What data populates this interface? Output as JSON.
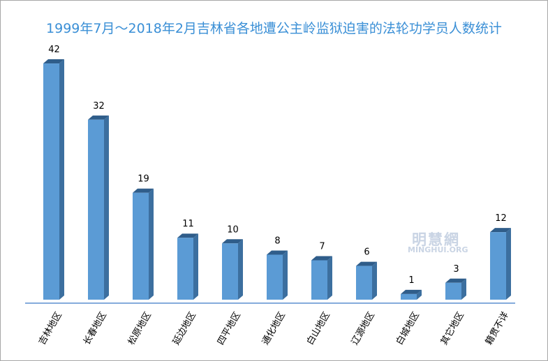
{
  "chart_data": {
    "type": "bar",
    "title": "1999年7月～2018年2月吉林省各地遭公主岭监狱迫害的法轮功学员人数统计",
    "categories": [
      "吉林地区",
      "长春地区",
      "松原地区",
      "延边地区",
      "四平地区",
      "通化地区",
      "白山地区",
      "辽源地区",
      "白城地区",
      "其它地区",
      "籍贯不详"
    ],
    "values": [
      42,
      32,
      19,
      11,
      10,
      8,
      7,
      6,
      1,
      3,
      12
    ],
    "xlabel": "",
    "ylabel": "",
    "ylim": [
      0,
      45
    ],
    "grid": false,
    "legend": "none",
    "colors": {
      "bar_front": "#5b9bd5",
      "bar_side": "#3c6f9f",
      "bar_top": "#2f5d8a",
      "title": "#3a8fd6",
      "axis": "#5b8fd0"
    }
  },
  "watermark": {
    "cn": "明慧網",
    "en": "MINGHUI.ORG"
  }
}
